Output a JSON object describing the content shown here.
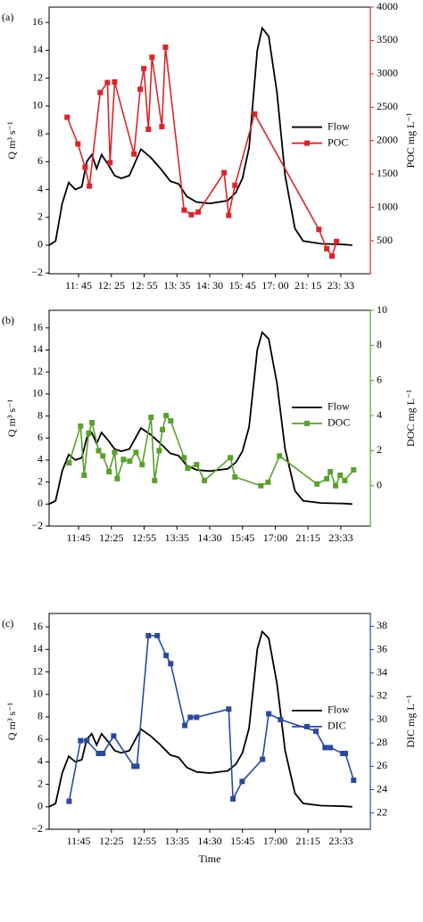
{
  "chart_data": [
    {
      "type": "line",
      "panel_label": "(a)",
      "ylabel": "Q m³ s⁻¹",
      "y2label": "POC mg L⁻¹",
      "xlim": [
        0.1,
        9.9
      ],
      "xticks": [
        {
          "value": 1,
          "label": "11: 45"
        },
        {
          "value": 2,
          "label": "12: 25"
        },
        {
          "value": 3,
          "label": "12: 55"
        },
        {
          "value": 4,
          "label": "13: 35"
        },
        {
          "value": 5,
          "label": "14: 30"
        },
        {
          "value": 6,
          "label": "15: 45"
        },
        {
          "value": 7,
          "label": "17: 00"
        },
        {
          "value": 8,
          "label": "21: 15"
        },
        {
          "value": 9,
          "label": "23: 33"
        }
      ],
      "ylim": [
        -2.05,
        17.1
      ],
      "yticks": [
        {
          "value": -2,
          "label": "−2"
        },
        0,
        2,
        4,
        6,
        8,
        10,
        12,
        14,
        16
      ],
      "y2lim": [
        6,
        4000
      ],
      "y2ticks": [
        500,
        1000,
        1500,
        2000,
        2500,
        3000,
        3500,
        4000
      ],
      "legend": "right",
      "series": [
        {
          "name": "Flow",
          "color": "#000000",
          "x": [
            0.1,
            0.3,
            0.5,
            0.7,
            0.9,
            1.1,
            1.25,
            1.4,
            1.55,
            1.7,
            1.9,
            2.1,
            2.3,
            2.55,
            2.9,
            3.2,
            3.5,
            3.8,
            4.05,
            4.3,
            4.6,
            5.0,
            5.55,
            5.8,
            6.0,
            6.2,
            6.45,
            6.6,
            6.8,
            7.05,
            7.3,
            7.6,
            7.85,
            8.4,
            9.1,
            9.35
          ],
          "values": [
            0,
            0.3,
            3,
            4.5,
            4,
            4.2,
            6,
            6.5,
            5.5,
            6.5,
            5.8,
            5,
            4.8,
            5,
            6.9,
            6.3,
            5.5,
            4.6,
            4.4,
            3.5,
            3.1,
            3,
            3.2,
            3.8,
            4.8,
            7,
            14,
            15.6,
            15,
            11,
            5,
            1.2,
            0.3,
            0.1,
            0.05,
            0
          ]
        },
        {
          "name": "POC",
          "color": "#d9262b",
          "axis": "y2",
          "marker": "square",
          "x": [
            0.65,
            0.98,
            1.2,
            1.33,
            1.66,
            1.88,
            1.96,
            2.1,
            2.69,
            2.88,
            2.99,
            3.13,
            3.24,
            3.54,
            3.65,
            4.22,
            4.44,
            4.65,
            5.44,
            5.58,
            5.77,
            6.37,
            8.33,
            8.57,
            8.73,
            8.87
          ],
          "values": [
            2350,
            1950,
            1600,
            1320,
            2720,
            2870,
            1670,
            2880,
            1800,
            2770,
            3080,
            2170,
            3250,
            2210,
            3400,
            960,
            890,
            930,
            1520,
            880,
            1330,
            2400,
            670,
            380,
            270,
            490
          ]
        }
      ]
    },
    {
      "type": "line",
      "panel_label": "(b)",
      "ylabel": "Q m³ s⁻¹",
      "y2label": "DOC mg L⁻¹",
      "xlim": [
        0.1,
        9.9
      ],
      "xticks": [
        {
          "value": 1,
          "label": "11:45"
        },
        {
          "value": 2,
          "label": "12:25"
        },
        {
          "value": 3,
          "label": "12:55"
        },
        {
          "value": 4,
          "label": "13:35"
        },
        {
          "value": 5,
          "label": "14:30"
        },
        {
          "value": 6,
          "label": "15:45"
        },
        {
          "value": 7,
          "label": "17:00"
        },
        {
          "value": 8,
          "label": "21:15"
        },
        {
          "value": 9,
          "label": "23:33"
        }
      ],
      "ylim": [
        -2,
        17.6
      ],
      "yticks": [
        {
          "value": -2,
          "label": "−2"
        },
        0,
        2,
        4,
        6,
        8,
        10,
        12,
        14,
        16
      ],
      "y2lim": [
        -2.3,
        10
      ],
      "y2ticks": [
        0,
        2,
        4,
        6,
        8,
        10
      ],
      "legend": "right",
      "series": [
        {
          "name": "Flow",
          "color": "#000000",
          "x": [
            0.1,
            0.3,
            0.5,
            0.7,
            0.9,
            1.1,
            1.25,
            1.4,
            1.55,
            1.7,
            1.9,
            2.1,
            2.3,
            2.55,
            2.9,
            3.2,
            3.5,
            3.8,
            4.05,
            4.3,
            4.6,
            5.0,
            5.55,
            5.8,
            6.0,
            6.2,
            6.45,
            6.6,
            6.8,
            7.05,
            7.3,
            7.6,
            7.85,
            8.4,
            9.1,
            9.35
          ],
          "values": [
            0,
            0.3,
            3,
            4.5,
            4,
            4.2,
            6,
            6.5,
            5.5,
            6.5,
            5.8,
            5,
            4.8,
            5,
            6.9,
            6.3,
            5.5,
            4.6,
            4.4,
            3.5,
            3.1,
            3,
            3.2,
            3.8,
            4.8,
            7,
            14,
            15.6,
            15,
            11,
            5,
            1.2,
            0.3,
            0.1,
            0.05,
            0
          ]
        },
        {
          "name": "DOC",
          "color": "#5aa02c",
          "axis": "y2",
          "marker": "square",
          "x": [
            0.71,
            1.06,
            1.17,
            1.31,
            1.41,
            1.61,
            1.74,
            1.93,
            2.1,
            2.18,
            2.37,
            2.56,
            2.75,
            2.94,
            3.21,
            3.32,
            3.46,
            3.56,
            3.67,
            3.81,
            4.22,
            4.33,
            4.6,
            4.84,
            5.63,
            5.77,
            6.56,
            6.78,
            7.13,
            8.27,
            8.57,
            8.68,
            8.84,
            8.98,
            9.12,
            9.39
          ],
          "values": [
            1.3,
            3.4,
            0.6,
            3.0,
            3.6,
            2.0,
            1.7,
            0.8,
            1.9,
            0.4,
            1.5,
            1.4,
            1.9,
            1.2,
            3.9,
            0.3,
            2.0,
            3.2,
            4.0,
            3.7,
            1.6,
            1.0,
            1.2,
            0.3,
            1.6,
            0.5,
            0,
            0.2,
            1.7,
            0.1,
            0.4,
            0.8,
            0,
            0.6,
            0.3,
            0.9
          ]
        }
      ]
    },
    {
      "type": "line",
      "panel_label": "(c)",
      "ylabel": "Q m³ s⁻¹",
      "y2label": "DIC mg L⁻¹",
      "xlabel": "Time",
      "xlim": [
        0.1,
        9.9
      ],
      "xticks": [
        {
          "value": 1,
          "label": "11:45"
        },
        {
          "value": 2,
          "label": "12:25"
        },
        {
          "value": 3,
          "label": "12:55"
        },
        {
          "value": 4,
          "label": "13:35"
        },
        {
          "value": 5,
          "label": "14:30"
        },
        {
          "value": 6,
          "label": "15:45"
        },
        {
          "value": 7,
          "label": "17:00"
        },
        {
          "value": 8,
          "label": "21:15"
        },
        {
          "value": 9,
          "label": "23:33"
        }
      ],
      "ylim": [
        -2,
        17.2
      ],
      "yticks": [
        {
          "value": -2,
          "label": "−2"
        },
        0,
        2,
        4,
        6,
        8,
        10,
        12,
        14,
        16
      ],
      "y2lim": [
        20.6,
        39.1
      ],
      "y2ticks": [
        22,
        24,
        26,
        28,
        30,
        32,
        34,
        36,
        38
      ],
      "legend": "right",
      "series": [
        {
          "name": "Flow",
          "color": "#000000",
          "x": [
            0.1,
            0.3,
            0.5,
            0.7,
            0.9,
            1.1,
            1.25,
            1.4,
            1.55,
            1.7,
            1.9,
            2.1,
            2.3,
            2.55,
            2.9,
            3.2,
            3.5,
            3.8,
            4.05,
            4.3,
            4.6,
            5.0,
            5.55,
            5.8,
            6.0,
            6.2,
            6.45,
            6.6,
            6.8,
            7.05,
            7.3,
            7.6,
            7.85,
            8.4,
            9.1,
            9.35
          ],
          "values": [
            0,
            0.3,
            3,
            4.5,
            4,
            4.2,
            6,
            6.5,
            5.5,
            6.5,
            5.8,
            5,
            4.8,
            5,
            6.9,
            6.3,
            5.5,
            4.6,
            4.4,
            3.5,
            3.1,
            3,
            3.2,
            3.8,
            4.8,
            7,
            14,
            15.6,
            15,
            11,
            5,
            1.2,
            0.3,
            0.1,
            0.05,
            0
          ]
        },
        {
          "name": "DIC",
          "color": "#2b4a9b",
          "axis": "y2",
          "marker": "square",
          "x": [
            0.71,
            1.06,
            1.25,
            1.61,
            1.74,
            2.07,
            2.69,
            2.78,
            3.13,
            3.4,
            3.67,
            3.81,
            4.24,
            4.41,
            4.6,
            5.58,
            5.71,
            5.99,
            6.61,
            6.8,
            7.16,
            8.24,
            8.52,
            8.68,
            9.06,
            9.14,
            9.39
          ],
          "values": [
            23.0,
            28.2,
            28.2,
            27.1,
            27.1,
            28.6,
            26.0,
            26.0,
            37.2,
            37.2,
            35.5,
            34.8,
            29.5,
            30.2,
            30.2,
            30.9,
            23.2,
            24.7,
            26.6,
            30.5,
            30.0,
            29.0,
            27.6,
            27.6,
            27.1,
            27.1,
            24.8
          ]
        }
      ]
    }
  ]
}
